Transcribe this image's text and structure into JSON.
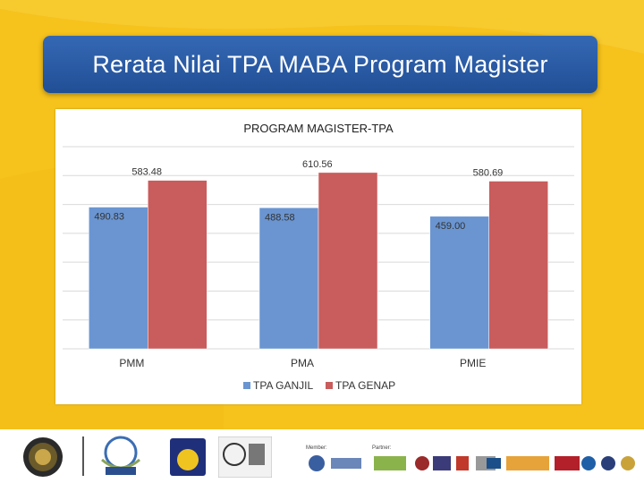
{
  "slide": {
    "title": "Rerata Nilai TPA MABA Program Magister"
  },
  "footer": {
    "member_label": "Member:",
    "partner_label": "Partner:",
    "logos": [
      "university-seal",
      "abest21-logo",
      "ub-logo",
      "iso-cert-logo",
      "abest21-small",
      "aacsb-logo",
      "partner-logo-1",
      "partner-logo-2",
      "uum-logo",
      "partner-logo-3",
      "itb-logo",
      "hague-logo",
      "msu-logo",
      "partner-logo-4",
      "partner-logo-5"
    ]
  },
  "colors": {
    "background": "#f6c21c",
    "title_bg": "#2a5aa6",
    "series_ganjil": "#6a95d1",
    "series_genap": "#c95c5c"
  },
  "chart_data": {
    "type": "bar",
    "title": "PROGRAM MAGISTER-TPA",
    "categories": [
      "PMM",
      "PMA",
      "PMIE"
    ],
    "series": [
      {
        "name": "TPA GANJIL",
        "values": [
          490.83,
          488.58,
          459.0
        ],
        "labels": [
          "490.83",
          "488.58",
          "459.00"
        ]
      },
      {
        "name": "TPA GENAP",
        "values": [
          583.48,
          610.56,
          580.69
        ],
        "labels": [
          "583.48",
          "610.56",
          "580.69"
        ]
      }
    ],
    "ylim": [
      0,
      700
    ],
    "grid": true,
    "legend_position": "bottom"
  }
}
